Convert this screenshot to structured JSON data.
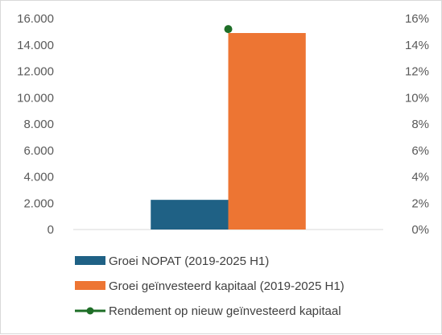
{
  "chart_data": {
    "type": "bar",
    "categories": [
      ""
    ],
    "series": [
      {
        "name": "Groei NOPAT (2019-2025 H1)",
        "type": "bar",
        "axis": "left",
        "values": [
          2250
        ],
        "color": "#1F6185"
      },
      {
        "name": "Groei geïnvesteerd kapitaal (2019-2025 H1)",
        "type": "bar",
        "axis": "left",
        "values": [
          14900
        ],
        "color": "#ED7533"
      },
      {
        "name": "Rendement op nieuw geïnvesteerd kapitaal",
        "type": "line",
        "axis": "right",
        "values": [
          15.2
        ],
        "unit": "%",
        "color": "#1E6E27"
      }
    ],
    "y_left": {
      "ylim": [
        0,
        16000
      ],
      "ticks": [
        0,
        2000,
        4000,
        6000,
        8000,
        10000,
        12000,
        14000,
        16000
      ],
      "tick_labels": [
        "0",
        "2.000",
        "4.000",
        "6.000",
        "8.000",
        "10.000",
        "12.000",
        "14.000",
        "16.000"
      ]
    },
    "y_right": {
      "ylim": [
        0,
        16
      ],
      "ticks": [
        0,
        2,
        4,
        6,
        8,
        10,
        12,
        14,
        16
      ],
      "tick_labels": [
        "0%",
        "2%",
        "4%",
        "6%",
        "8%",
        "10%",
        "12%",
        "14%",
        "16%"
      ]
    },
    "title": "",
    "xlabel": "",
    "ylabel": "",
    "grid": false,
    "legend_position": "bottom-left"
  }
}
